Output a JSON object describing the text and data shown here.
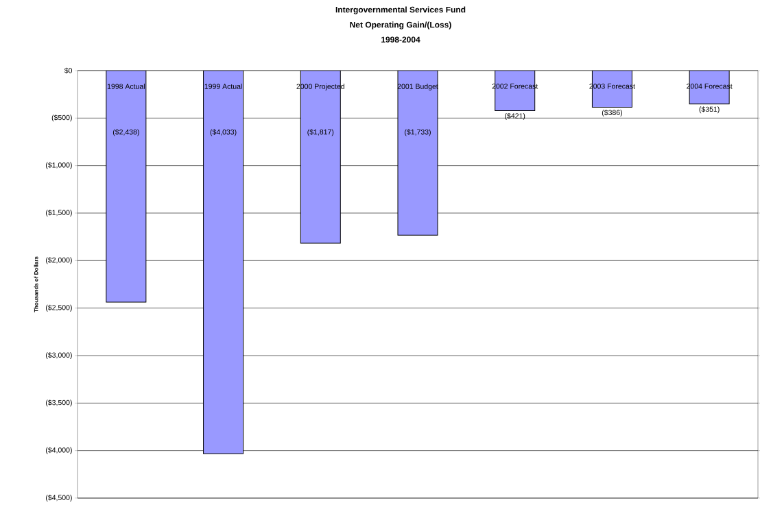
{
  "chart_data": {
    "type": "bar",
    "title": "Intergovernmental Services Fund",
    "subtitle": "Net Operating Gain/(Loss)",
    "annotations": [
      "1998-2004"
    ],
    "ylabel": "Thousands of Dollars",
    "categories": [
      "1998 Actual",
      "1999 Actual",
      "2000 Projected",
      "2001 Budget",
      "2002 Forecast",
      "2003 Forecast",
      "2004 Forecast"
    ],
    "values": [
      -2438,
      -4033,
      -1817,
      -1733,
      -421,
      -386,
      -351
    ],
    "value_labels": [
      "($2,438)",
      "($4,033)",
      "($1,817)",
      "($1,733)",
      "($421)",
      "($386)",
      "($351)"
    ],
    "color": "#9999ff",
    "ylim": [
      -4500,
      0
    ],
    "yticks": [
      {
        "value": 0,
        "label": "$0"
      },
      {
        "value": -500,
        "label": "($500)"
      },
      {
        "value": -1000,
        "label": "($1,000)"
      },
      {
        "value": -1500,
        "label": "($1,500)"
      },
      {
        "value": -2000,
        "label": "($2,000)"
      },
      {
        "value": -2500,
        "label": "($2,500)"
      },
      {
        "value": -3000,
        "label": "($3,000)"
      },
      {
        "value": -3500,
        "label": "($3,500)"
      },
      {
        "value": -4000,
        "label": "($4,000)"
      },
      {
        "value": -4500,
        "label": "($4,500)"
      }
    ],
    "grid": "y"
  }
}
